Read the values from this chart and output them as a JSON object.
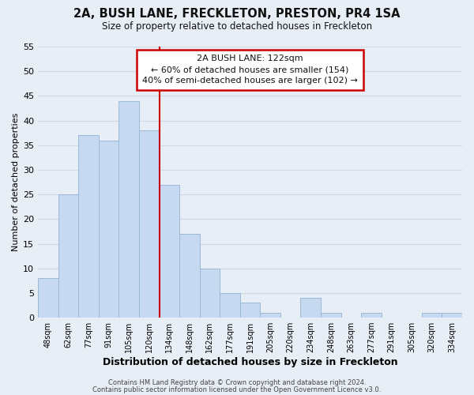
{
  "title1": "2A, BUSH LANE, FRECKLETON, PRESTON, PR4 1SA",
  "title2": "Size of property relative to detached houses in Freckleton",
  "xlabel": "Distribution of detached houses by size in Freckleton",
  "ylabel": "Number of detached properties",
  "bin_labels": [
    "48sqm",
    "62sqm",
    "77sqm",
    "91sqm",
    "105sqm",
    "120sqm",
    "134sqm",
    "148sqm",
    "162sqm",
    "177sqm",
    "191sqm",
    "205sqm",
    "220sqm",
    "234sqm",
    "248sqm",
    "263sqm",
    "277sqm",
    "291sqm",
    "305sqm",
    "320sqm",
    "334sqm"
  ],
  "bar_heights": [
    8,
    25,
    37,
    36,
    44,
    38,
    27,
    17,
    10,
    5,
    3,
    1,
    0,
    4,
    1,
    0,
    1,
    0,
    0,
    1,
    1
  ],
  "bar_color": "#c6d9f0",
  "bar_edge_color": "#9ab8d8",
  "grid_color": "#d0d8e8",
  "vline_x": 5.5,
  "vline_color": "#cc0000",
  "annotation_title": "2A BUSH LANE: 122sqm",
  "annotation_line1": "← 60% of detached houses are smaller (154)",
  "annotation_line2": "40% of semi-detached houses are larger (102) →",
  "annotation_box_color": "#ffffff",
  "annotation_box_edge": "#cc0000",
  "footer1": "Contains HM Land Registry data © Crown copyright and database right 2024.",
  "footer2": "Contains public sector information licensed under the Open Government Licence v3.0.",
  "ylim": [
    0,
    55
  ],
  "yticks": [
    0,
    5,
    10,
    15,
    20,
    25,
    30,
    35,
    40,
    45,
    50,
    55
  ],
  "bg_color": "#e8eef5",
  "title1_fontsize": 10.5,
  "title2_fontsize": 8.5,
  "ylabel_fontsize": 8,
  "xlabel_fontsize": 9
}
